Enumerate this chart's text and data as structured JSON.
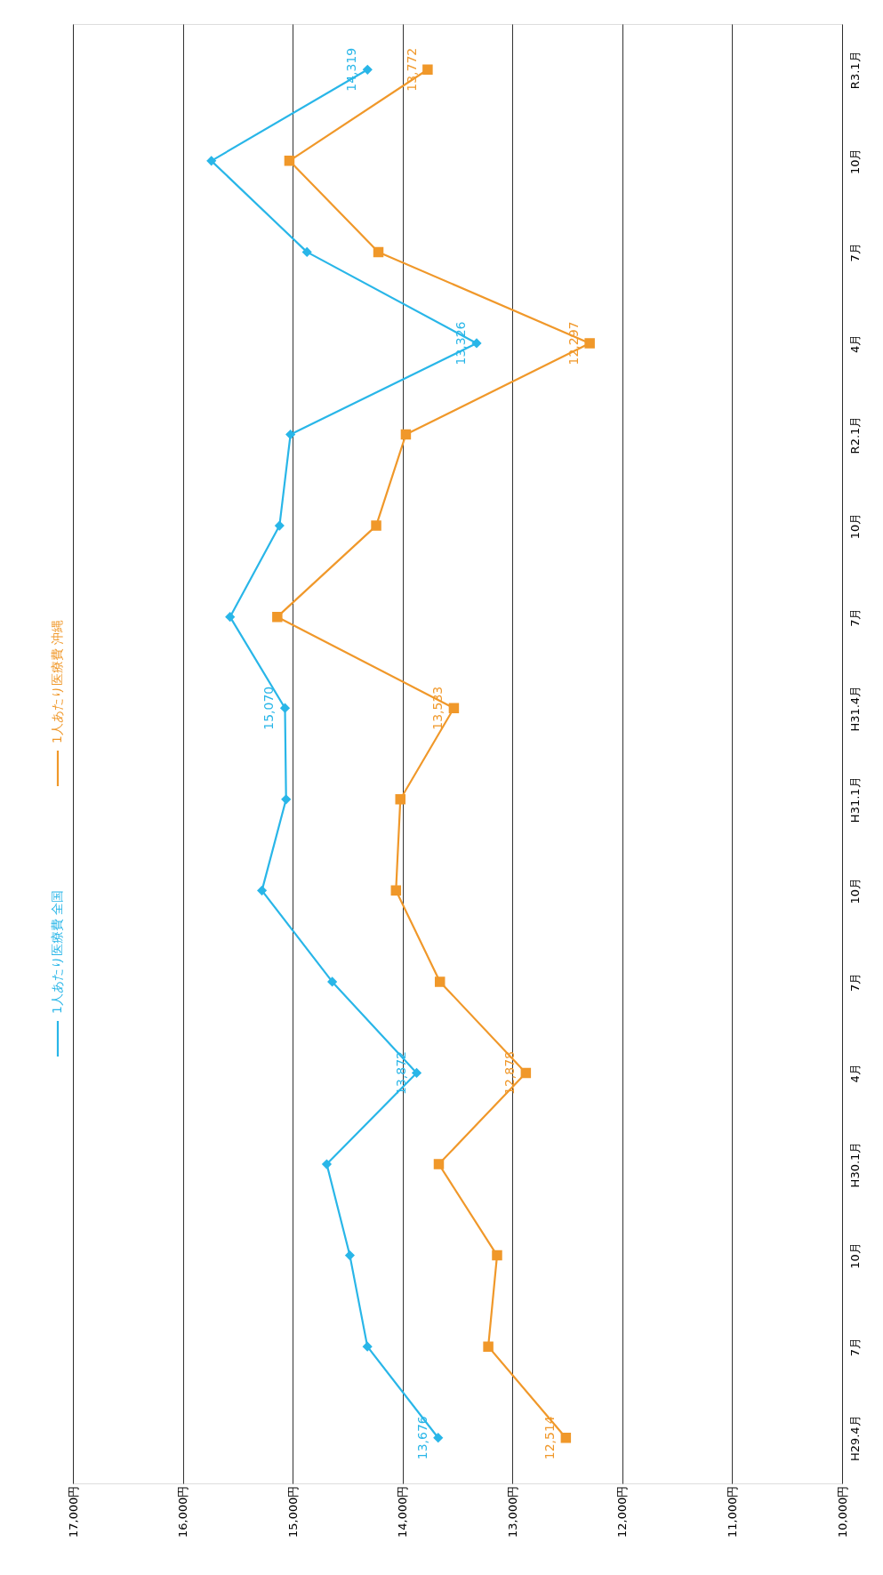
{
  "chart_data": {
    "type": "line",
    "orientation": "horizontal",
    "categories": [
      "R3.1月",
      "10月",
      "7月",
      "4月",
      "R2.1月",
      "10月",
      "7月",
      "H31.4月",
      "H31.1月",
      "10月",
      "7月",
      "4月",
      "H30.1月",
      "10月",
      "7月",
      "H29.4月"
    ],
    "series": [
      {
        "name": "1人あたり医療費 全国",
        "color": "#29b6e8",
        "marker": "diamond",
        "values": [
          14319,
          15740,
          14870,
          13326,
          15020,
          15120,
          15570,
          15070,
          15060,
          15280,
          14640,
          13872,
          14690,
          14480,
          14320,
          13676
        ],
        "value_labels": [
          "14,319",
          null,
          null,
          "13,326",
          null,
          null,
          null,
          "15,070",
          null,
          null,
          null,
          "13,872",
          null,
          null,
          null,
          "13,676"
        ]
      },
      {
        "name": "1人あたり医療費 沖縄",
        "color": "#f0982a",
        "marker": "square",
        "values": [
          13772,
          15030,
          14220,
          12297,
          13970,
          14240,
          15140,
          13533,
          14020,
          14060,
          13660,
          12878,
          13670,
          13140,
          13220,
          12514
        ],
        "value_labels": [
          "13,772",
          null,
          null,
          "12,297",
          null,
          null,
          null,
          "13,533",
          null,
          null,
          null,
          "12,878",
          null,
          null,
          null,
          "12,514"
        ]
      }
    ],
    "xlim": [
      17000,
      10000
    ],
    "xticks": [
      {
        "value": 17000,
        "label": "17,000円"
      },
      {
        "value": 16000,
        "label": "16,000円"
      },
      {
        "value": 15000,
        "label": "15,000円"
      },
      {
        "value": 14000,
        "label": "14,000円"
      },
      {
        "value": 13000,
        "label": "13,000円"
      },
      {
        "value": 12000,
        "label": "12,000円"
      },
      {
        "value": 11000,
        "label": "11,000円"
      },
      {
        "value": 10000,
        "label": "10,000円"
      }
    ],
    "grid": "x",
    "legend": "left"
  }
}
